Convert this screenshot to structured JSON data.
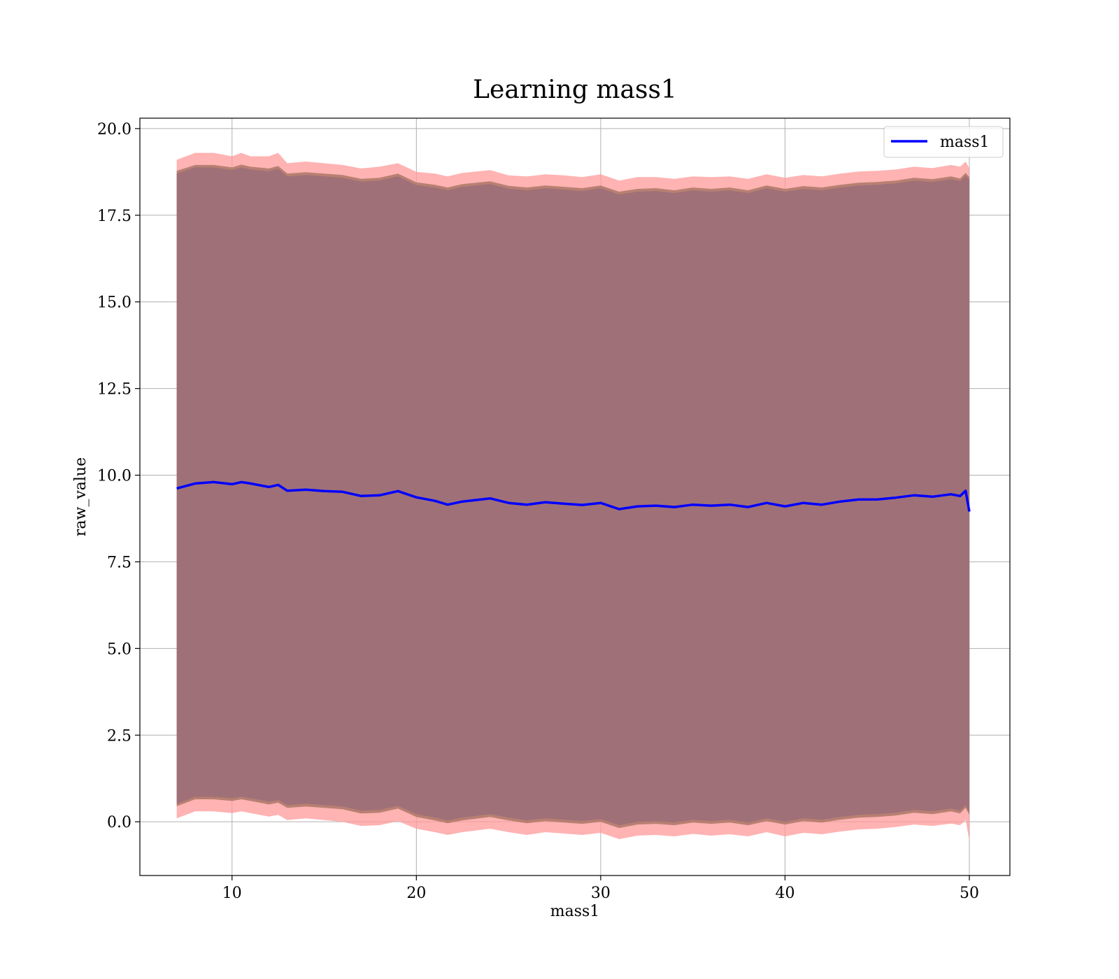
{
  "chart_data": {
    "type": "line",
    "title": "Learning mass1",
    "xlabel": "mass1",
    "ylabel": "raw_value",
    "xlim": [
      5,
      52.2
    ],
    "ylim": [
      -1.55,
      20.3
    ],
    "xticks": [
      10,
      20,
      30,
      40,
      50
    ],
    "yticks": [
      0.0,
      2.5,
      5.0,
      7.5,
      10.0,
      12.5,
      15.0,
      17.5,
      20.0
    ],
    "xtick_labels": [
      "10",
      "20",
      "30",
      "40",
      "50"
    ],
    "ytick_labels": [
      "0.0",
      "2.5",
      "5.0",
      "7.5",
      "10.0",
      "12.5",
      "15.0",
      "17.5",
      "20.0"
    ],
    "grid": true,
    "legend": {
      "position": "top-right",
      "entries": [
        "mass1"
      ]
    },
    "colors": {
      "line": "#0000ff",
      "band_outer": "#ff9999",
      "band_middle": "#b07a6a",
      "band_inner": "#a07078",
      "grid": "#b0b0b0"
    },
    "series": [
      {
        "name": "mass1",
        "x": [
          7.0,
          8.0,
          9.0,
          10.0,
          10.5,
          11.0,
          12.0,
          12.5,
          13.0,
          14.0,
          15.0,
          16.0,
          17.0,
          18.0,
          19.0,
          20.0,
          21.0,
          21.7,
          22.5,
          24.0,
          25.0,
          26.0,
          27.0,
          28.0,
          29.0,
          30.0,
          31.0,
          32.0,
          33.0,
          34.0,
          35.0,
          36.0,
          37.0,
          38.0,
          39.0,
          40.0,
          41.0,
          42.0,
          43.0,
          44.0,
          45.0,
          46.0,
          47.0,
          48.0,
          49.0,
          49.5,
          49.8,
          50.0
        ],
        "values": [
          9.62,
          9.76,
          9.8,
          9.74,
          9.8,
          9.76,
          9.66,
          9.72,
          9.55,
          9.58,
          9.54,
          9.52,
          9.4,
          9.42,
          9.54,
          9.36,
          9.26,
          9.15,
          9.24,
          9.33,
          9.2,
          9.15,
          9.22,
          9.18,
          9.14,
          9.2,
          9.02,
          9.1,
          9.12,
          9.08,
          9.15,
          9.12,
          9.15,
          9.08,
          9.2,
          9.1,
          9.2,
          9.15,
          9.24,
          9.3,
          9.3,
          9.35,
          9.42,
          9.38,
          9.45,
          9.4,
          9.55,
          8.95
        ],
        "band_outer_upper": [
          19.1,
          19.3,
          19.3,
          19.2,
          19.3,
          19.2,
          19.2,
          19.3,
          19.0,
          19.05,
          19.0,
          18.95,
          18.85,
          18.9,
          19.0,
          18.75,
          18.7,
          18.62,
          18.72,
          18.8,
          18.65,
          18.62,
          18.68,
          18.65,
          18.6,
          18.68,
          18.5,
          18.6,
          18.6,
          18.55,
          18.62,
          18.6,
          18.62,
          18.55,
          18.68,
          18.58,
          18.66,
          18.62,
          18.7,
          18.76,
          18.78,
          18.82,
          18.9,
          18.86,
          18.95,
          18.9,
          19.05,
          18.85
        ],
        "band_outer_lower": [
          0.1,
          0.3,
          0.3,
          0.25,
          0.3,
          0.25,
          0.15,
          0.2,
          0.05,
          0.1,
          0.05,
          0.0,
          -0.12,
          -0.1,
          0.02,
          -0.2,
          -0.3,
          -0.38,
          -0.3,
          -0.2,
          -0.3,
          -0.38,
          -0.3,
          -0.34,
          -0.38,
          -0.32,
          -0.5,
          -0.4,
          -0.38,
          -0.42,
          -0.35,
          -0.4,
          -0.36,
          -0.42,
          -0.3,
          -0.42,
          -0.32,
          -0.36,
          -0.28,
          -0.22,
          -0.2,
          -0.15,
          -0.08,
          -0.12,
          -0.05,
          -0.1,
          0.05,
          -0.55
        ],
        "band_middle_upper": [
          18.78,
          18.95,
          18.95,
          18.88,
          18.96,
          18.9,
          18.85,
          18.92,
          18.7,
          18.74,
          18.7,
          18.66,
          18.55,
          18.58,
          18.7,
          18.45,
          18.38,
          18.3,
          18.4,
          18.48,
          18.35,
          18.3,
          18.36,
          18.32,
          18.28,
          18.36,
          18.18,
          18.26,
          18.28,
          18.22,
          18.3,
          18.26,
          18.3,
          18.22,
          18.36,
          18.26,
          18.34,
          18.3,
          18.38,
          18.44,
          18.46,
          18.5,
          18.58,
          18.54,
          18.62,
          18.56,
          18.72,
          18.6
        ],
        "band_middle_lower": [
          0.45,
          0.65,
          0.65,
          0.6,
          0.65,
          0.6,
          0.5,
          0.55,
          0.4,
          0.44,
          0.4,
          0.36,
          0.24,
          0.26,
          0.38,
          0.14,
          0.04,
          -0.04,
          0.04,
          0.14,
          0.04,
          -0.04,
          0.02,
          -0.02,
          -0.06,
          0.0,
          -0.18,
          -0.08,
          -0.06,
          -0.1,
          -0.02,
          -0.06,
          -0.02,
          -0.1,
          0.02,
          -0.08,
          0.02,
          -0.02,
          0.06,
          0.12,
          0.14,
          0.18,
          0.26,
          0.22,
          0.3,
          0.24,
          0.4,
          0.2
        ],
        "band_inner_upper": [
          18.7,
          18.88,
          18.88,
          18.8,
          18.88,
          18.82,
          18.77,
          18.84,
          18.62,
          18.66,
          18.62,
          18.58,
          18.47,
          18.5,
          18.62,
          18.37,
          18.3,
          18.22,
          18.32,
          18.4,
          18.27,
          18.22,
          18.28,
          18.24,
          18.2,
          18.28,
          18.1,
          18.18,
          18.2,
          18.14,
          18.22,
          18.18,
          18.22,
          18.14,
          18.28,
          18.18,
          18.26,
          18.22,
          18.3,
          18.36,
          18.38,
          18.42,
          18.5,
          18.46,
          18.54,
          18.48,
          18.64,
          18.52
        ],
        "band_inner_lower": [
          0.52,
          0.72,
          0.72,
          0.68,
          0.72,
          0.68,
          0.58,
          0.62,
          0.48,
          0.52,
          0.48,
          0.44,
          0.32,
          0.34,
          0.46,
          0.22,
          0.12,
          0.04,
          0.12,
          0.22,
          0.12,
          0.04,
          0.1,
          0.06,
          0.02,
          0.08,
          -0.1,
          0.0,
          0.02,
          -0.02,
          0.06,
          0.02,
          0.06,
          -0.02,
          0.1,
          0.0,
          0.1,
          0.06,
          0.14,
          0.2,
          0.22,
          0.26,
          0.34,
          0.3,
          0.38,
          0.32,
          0.48,
          0.28
        ]
      }
    ]
  }
}
